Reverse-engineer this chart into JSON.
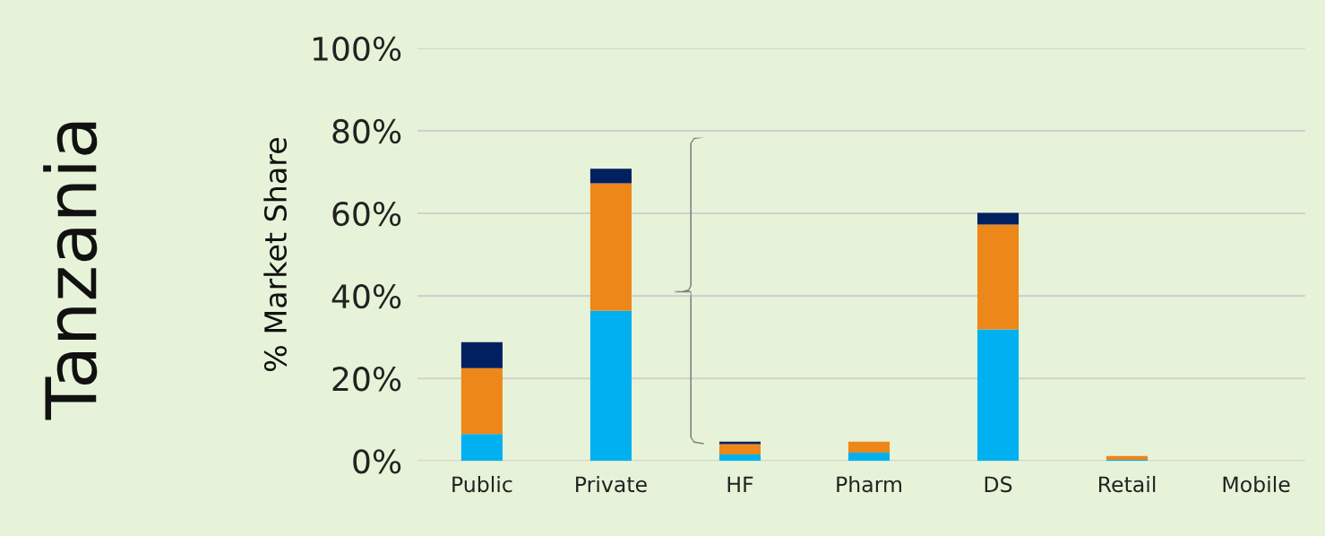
{
  "chart_data": {
    "type": "bar",
    "title": "Tanzania",
    "ylabel": "% Market Share",
    "categories": [
      "Public",
      "Private",
      "HF",
      "Pharm",
      "DS",
      "Retail",
      "Mobile"
    ],
    "stacked": true,
    "series": [
      {
        "color": "#00b0f0",
        "values": [
          6.5,
          36.4,
          1.6,
          2.0,
          31.9,
          0.3,
          0
        ]
      },
      {
        "color": "#ed8719",
        "values": [
          16.0,
          30.9,
          2.5,
          2.7,
          25.4,
          0.9,
          0
        ]
      },
      {
        "color": "#002060",
        "values": [
          6.3,
          3.5,
          0.6,
          0,
          2.8,
          0,
          0
        ]
      }
    ],
    "ylim": [
      0,
      100
    ],
    "yticks": [
      {
        "value": 0,
        "label": "0%"
      },
      {
        "value": 20,
        "label": "20%"
      },
      {
        "value": 40,
        "label": "40%"
      },
      {
        "value": 60,
        "label": "60%"
      },
      {
        "value": 80,
        "label": "80%"
      },
      {
        "value": 100,
        "label": "100%"
      }
    ],
    "grid": "y"
  }
}
